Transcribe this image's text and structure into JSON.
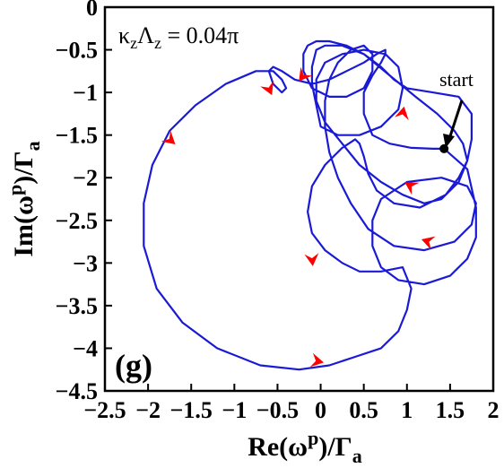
{
  "chart_data": {
    "type": "line",
    "title": "",
    "xlabel": "Re(ω^p)/Γ_a",
    "ylabel": "Im(ω^p)/Γ_a",
    "xlabel_parts": {
      "pre": "Re(ω",
      "sup": "p",
      "mid": ")/Γ",
      "sub": "a"
    },
    "ylabel_parts": {
      "pre": "Im(ω",
      "sup": "p",
      "mid": ")/Γ",
      "sub": "a"
    },
    "xlim": [
      -2.5,
      2
    ],
    "ylim": [
      -4.5,
      0
    ],
    "y_inverted_display": true,
    "grid": false,
    "xticks": [
      -2.5,
      -2,
      -1.5,
      -1,
      -0.5,
      0,
      0.5,
      1,
      1.5,
      2
    ],
    "xtick_labels": [
      "−2.5",
      "−2",
      "−1.5",
      "−1",
      "−0.5",
      "0",
      "0.5",
      "1",
      "1.5",
      "2"
    ],
    "yticks": [
      0,
      -0.5,
      -1,
      -1.5,
      -2,
      -2.5,
      -3,
      -3.5,
      -4,
      -4.5
    ],
    "ytick_labels": [
      "0",
      "−0.5",
      "−1",
      "−1.5",
      "−2",
      "−2.5",
      "−3",
      "−3.5",
      "−4",
      "−4.5"
    ],
    "series": [
      {
        "color": "#1a1ad6",
        "x": [
          1.43,
          1.7,
          1.8,
          1.8,
          1.7,
          1.5,
          1.2,
          0.9,
          0.7,
          0.6,
          0.6,
          0.7,
          1.0,
          1.4,
          1.7,
          1.8,
          1.75,
          1.55,
          1.2,
          0.85,
          0.55,
          0.35,
          0.2,
          0.1,
          0.05,
          0.05,
          0.1,
          0.2,
          0.35,
          0.5,
          0.6,
          0.6,
          0.5,
          0.3,
          0.1,
          -0.1,
          -0.2,
          -0.2,
          -0.15,
          -0.05,
          0.1,
          0.3,
          0.5,
          0.7,
          0.85,
          1.0,
          1.3,
          1.6,
          1.75,
          1.75,
          1.7,
          1.6,
          1.4,
          1.2,
          0.95,
          0.7,
          0.45,
          0.25,
          0.05,
          -0.05,
          -0.05,
          0.05,
          0.25,
          0.5,
          0.75,
          0.9,
          0.95,
          0.9,
          0.7,
          0.45,
          0.2,
          0.0,
          -0.05,
          -0.1,
          -0.1,
          -0.05,
          0.05,
          0.25,
          0.5,
          0.8,
          1.1,
          1.35,
          1.55,
          1.65,
          1.7,
          1.6,
          1.45,
          1.15,
          0.85,
          0.65,
          0.55,
          0.5,
          0.45,
          0.4,
          0.25,
          0.05,
          -0.1,
          -0.15,
          -0.1,
          0.05,
          0.25,
          0.45,
          0.7,
          0.95,
          1.05,
          1.0,
          0.9,
          0.7,
          0.4,
          0.1,
          -0.25,
          -0.7,
          -1.2,
          -1.6,
          -1.9,
          -2.05,
          -2.05,
          -1.95,
          -1.75,
          -1.45,
          -1.1,
          -0.75,
          -0.55,
          -0.45,
          -0.4,
          -0.45,
          -0.55,
          -0.6,
          -0.55,
          -0.45,
          -0.3,
          -0.1,
          0.1,
          0.3,
          0.5,
          0.65,
          0.75,
          0.75,
          0.7,
          0.6,
          0.5,
          0.5,
          0.6,
          0.8,
          1.05,
          1.3,
          1.43
        ],
        "y": [
          -1.66,
          -1.9,
          -2.35,
          -2.7,
          -2.95,
          -3.15,
          -3.25,
          -3.2,
          -3.05,
          -2.8,
          -2.5,
          -2.25,
          -2.05,
          -2.0,
          -2.1,
          -2.3,
          -2.55,
          -2.75,
          -2.85,
          -2.8,
          -2.6,
          -2.3,
          -2.0,
          -1.7,
          -1.4,
          -1.1,
          -0.85,
          -0.65,
          -0.5,
          -0.45,
          -0.55,
          -0.75,
          -0.95,
          -1.05,
          -1.05,
          -0.95,
          -0.75,
          -0.55,
          -0.45,
          -0.4,
          -0.4,
          -0.45,
          -0.55,
          -0.7,
          -0.85,
          -0.95,
          -1.0,
          -1.05,
          -1.25,
          -1.55,
          -1.8,
          -2.05,
          -2.25,
          -2.3,
          -2.2,
          -2.05,
          -1.85,
          -1.6,
          -1.35,
          -1.1,
          -0.85,
          -0.65,
          -0.55,
          -0.5,
          -0.55,
          -0.7,
          -0.95,
          -1.2,
          -1.4,
          -1.5,
          -1.5,
          -1.4,
          -1.15,
          -0.9,
          -0.7,
          -0.5,
          -0.45,
          -0.45,
          -0.55,
          -0.8,
          -1.05,
          -1.25,
          -1.45,
          -1.6,
          -1.8,
          -2.0,
          -2.2,
          -2.35,
          -2.3,
          -2.15,
          -1.95,
          -1.75,
          -1.6,
          -1.55,
          -1.65,
          -1.85,
          -2.1,
          -2.4,
          -2.65,
          -2.85,
          -3.0,
          -3.1,
          -3.1,
          -3.05,
          -3.3,
          -3.55,
          -3.8,
          -4.0,
          -4.1,
          -4.2,
          -4.25,
          -4.2,
          -4.0,
          -3.7,
          -3.3,
          -2.8,
          -2.3,
          -1.85,
          -1.45,
          -1.15,
          -0.9,
          -0.75,
          -0.75,
          -0.85,
          -0.95,
          -1.0,
          -0.9,
          -0.75,
          -0.7,
          -0.75,
          -0.85,
          -0.9,
          -0.85,
          -0.75,
          -0.65,
          -0.55,
          -0.5,
          -0.55,
          -0.65,
          -0.8,
          -1.0,
          -1.25,
          -1.5,
          -1.6,
          -1.65,
          -1.66,
          -1.66
        ]
      }
    ],
    "arrows": [
      {
        "x": -1.75,
        "y": -1.55,
        "dir": [
          0.75,
          0.66
        ]
      },
      {
        "x": -0.6,
        "y": -0.95,
        "dir": [
          0.4,
          0.92
        ]
      },
      {
        "x": -0.2,
        "y": -0.8,
        "dir": [
          -0.6,
          0.8
        ]
      },
      {
        "x": 0.95,
        "y": -1.25,
        "dir": [
          0.2,
          -0.98
        ]
      },
      {
        "x": 1.05,
        "y": -2.1,
        "dir": [
          -0.85,
          -0.52
        ]
      },
      {
        "x": 1.25,
        "y": -2.75,
        "dir": [
          -0.95,
          -0.3
        ]
      },
      {
        "x": -0.1,
        "y": -2.95,
        "dir": [
          0.1,
          0.99
        ]
      },
      {
        "x": -0.05,
        "y": -4.15,
        "dir": [
          0.98,
          0.2
        ]
      }
    ],
    "start_point": {
      "x": 1.43,
      "y": -1.66,
      "label": "start"
    },
    "annotation": "κ_zΛ_z = 0.04π",
    "annotation_parts": {
      "k": "κ",
      "ksub": "z",
      "L": "Λ",
      "Lsub": "z",
      "rest": " = 0.04π"
    },
    "panel_label": "(g)",
    "arrow_color": "#ff0000"
  }
}
